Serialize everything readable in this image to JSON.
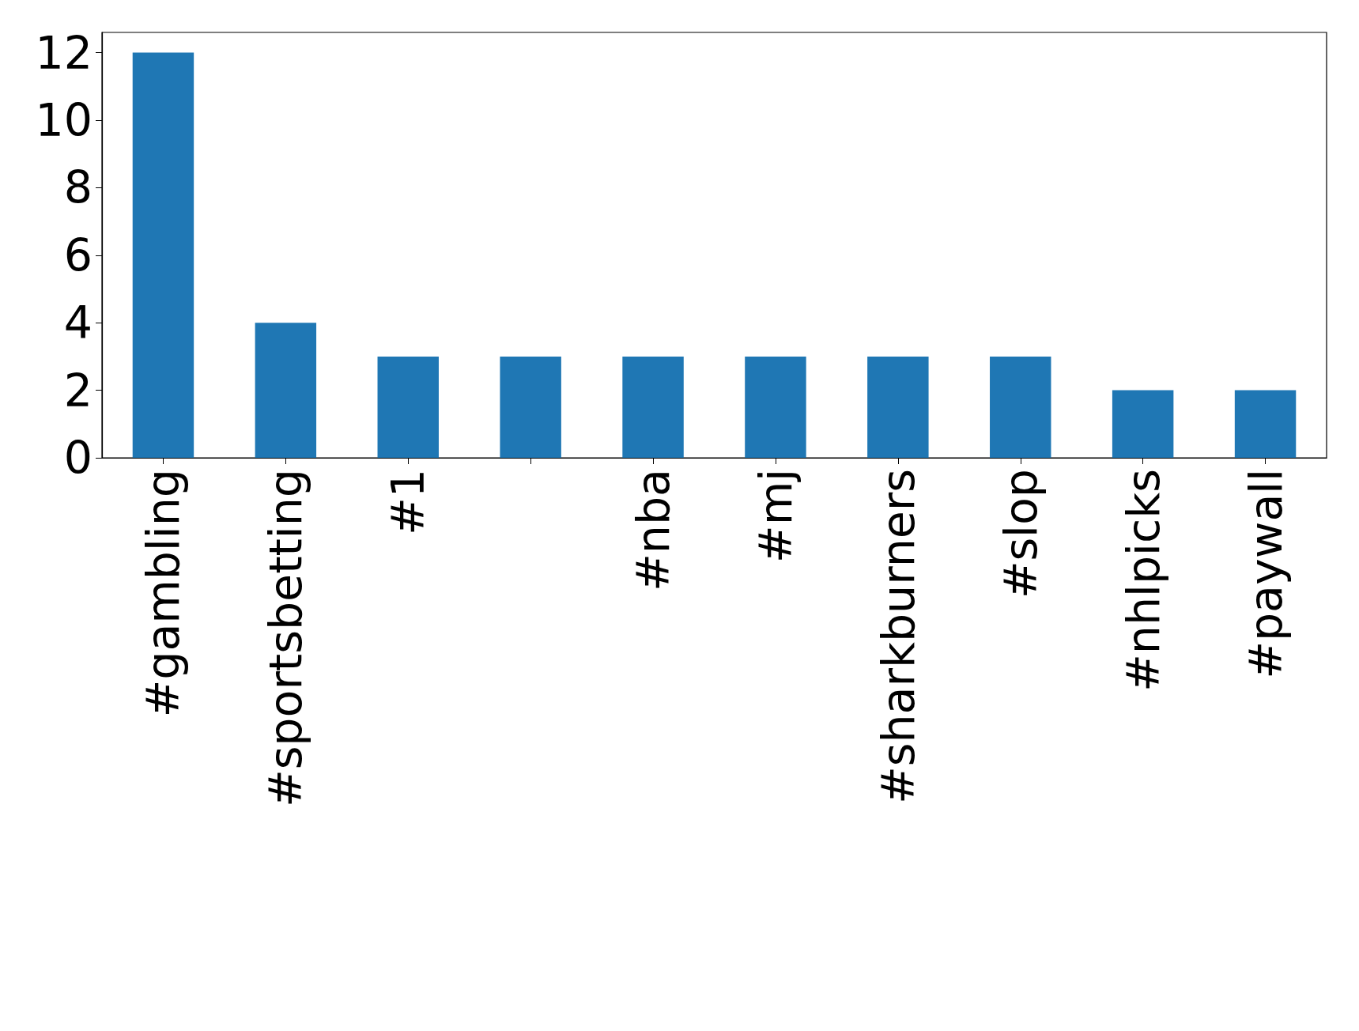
{
  "chart_data": {
    "type": "bar",
    "categories": [
      "#gambling",
      "#sportsbetting",
      "#1",
      null,
      "#nba",
      "#mj",
      "#sharkburners",
      "#slop",
      "#nhlpicks",
      "#paywall"
    ],
    "values": [
      12,
      4,
      3,
      3,
      3,
      3,
      3,
      3,
      2,
      2
    ],
    "color": "#1f77b4",
    "ylim": [
      0,
      12.6
    ],
    "yticks": [
      0,
      2,
      4,
      6,
      8,
      10,
      12
    ]
  }
}
